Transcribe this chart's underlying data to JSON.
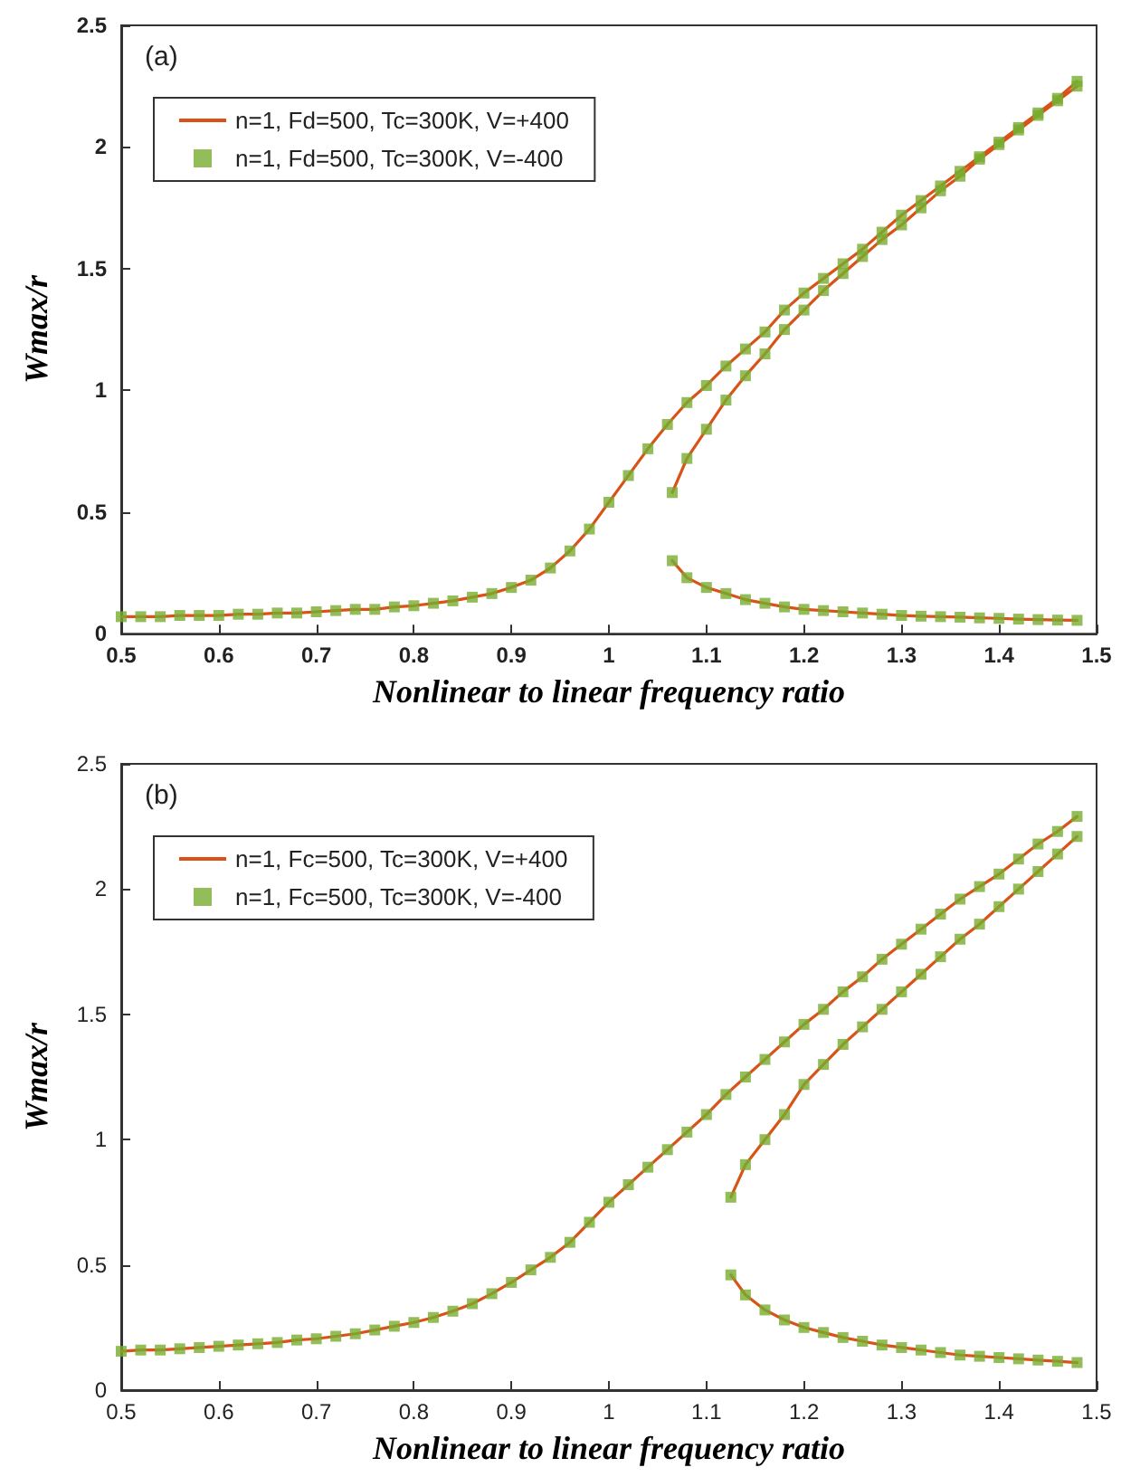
{
  "chart_data": [
    {
      "type": "line",
      "xlabel": "Nonlinear to linear frequency ratio",
      "ylabel": "Wmax/r",
      "annotations": [
        "(a)"
      ],
      "xlim": [
        0.5,
        1.5
      ],
      "xticks": [
        0.5,
        0.6,
        0.7,
        0.8,
        0.9,
        1,
        1.1,
        1.2,
        1.3,
        1.4,
        1.5
      ],
      "ylim": [
        0,
        2.5
      ],
      "yticks": [
        0,
        0.5,
        1,
        1.5,
        2,
        2.5
      ],
      "legend": "top left",
      "series": [
        {
          "name": "n=1, Fd=500, Tc=300K, V=+400",
          "marker": "none",
          "color": "#d95319",
          "x": [
            0.5,
            0.52,
            0.54,
            0.56,
            0.58,
            0.6,
            0.62,
            0.64,
            0.66,
            0.68,
            0.7,
            0.72,
            0.74,
            0.76,
            0.78,
            0.8,
            0.82,
            0.84,
            0.86,
            0.88,
            0.9,
            0.92,
            0.94,
            0.96,
            0.98,
            1.0,
            1.02,
            1.04,
            1.06,
            1.08,
            1.1,
            1.12,
            1.14,
            1.16,
            1.18,
            1.2,
            1.22,
            1.24,
            1.26,
            1.28,
            1.3,
            1.32,
            1.34,
            1.36,
            1.38,
            1.4,
            1.42,
            1.44,
            1.46,
            1.48,
            null,
            1.065,
            1.08,
            1.1,
            1.12,
            1.14,
            1.16,
            1.18,
            1.2,
            1.22,
            1.24,
            1.26,
            1.28,
            1.3,
            1.32,
            1.34,
            1.36,
            1.38,
            1.4,
            1.42,
            1.44,
            1.46,
            1.48,
            null,
            1.065,
            1.08,
            1.1,
            1.12,
            1.14,
            1.16,
            1.18,
            1.2,
            1.22,
            1.24,
            1.26,
            1.28,
            1.3,
            1.32,
            1.34,
            1.36,
            1.38,
            1.4,
            1.42,
            1.44,
            1.46,
            1.48
          ],
          "values": [
            0.07,
            0.07,
            0.07,
            0.075,
            0.075,
            0.075,
            0.08,
            0.08,
            0.085,
            0.085,
            0.09,
            0.095,
            0.1,
            0.1,
            0.11,
            0.115,
            0.125,
            0.135,
            0.15,
            0.165,
            0.19,
            0.22,
            0.27,
            0.34,
            0.43,
            0.54,
            0.65,
            0.76,
            0.86,
            0.95,
            1.02,
            1.1,
            1.17,
            1.24,
            1.33,
            1.4,
            1.46,
            1.52,
            1.58,
            1.65,
            1.72,
            1.78,
            1.84,
            1.9,
            1.96,
            2.02,
            2.08,
            2.14,
            2.2,
            2.27,
            null,
            0.58,
            0.72,
            0.84,
            0.96,
            1.06,
            1.15,
            1.25,
            1.33,
            1.41,
            1.48,
            1.55,
            1.62,
            1.68,
            1.75,
            1.82,
            1.88,
            1.95,
            2.01,
            2.07,
            2.13,
            2.19,
            2.25,
            null,
            0.3,
            0.23,
            0.19,
            0.165,
            0.14,
            0.125,
            0.11,
            0.1,
            0.095,
            0.09,
            0.085,
            0.08,
            0.075,
            0.072,
            0.07,
            0.068,
            0.065,
            0.063,
            0.06,
            0.058,
            0.056,
            0.055
          ]
        },
        {
          "name": "n=1, Fd=500, Tc=300K, V=-400",
          "type": "scatter",
          "marker": "square",
          "color": "#77ac30",
          "x": [
            0.5,
            0.52,
            0.54,
            0.56,
            0.58,
            0.6,
            0.62,
            0.64,
            0.66,
            0.68,
            0.7,
            0.72,
            0.74,
            0.76,
            0.78,
            0.8,
            0.82,
            0.84,
            0.86,
            0.88,
            0.9,
            0.92,
            0.94,
            0.96,
            0.98,
            1.0,
            1.02,
            1.04,
            1.06,
            1.08,
            1.1,
            1.12,
            1.14,
            1.16,
            1.18,
            1.2,
            1.22,
            1.24,
            1.26,
            1.28,
            1.3,
            1.32,
            1.34,
            1.36,
            1.38,
            1.4,
            1.42,
            1.44,
            1.46,
            1.48,
            1.065,
            1.08,
            1.1,
            1.12,
            1.14,
            1.16,
            1.18,
            1.2,
            1.22,
            1.24,
            1.26,
            1.28,
            1.3,
            1.32,
            1.34,
            1.36,
            1.38,
            1.4,
            1.42,
            1.44,
            1.46,
            1.48,
            1.065,
            1.08,
            1.1,
            1.12,
            1.14,
            1.16,
            1.18,
            1.2,
            1.22,
            1.24,
            1.26,
            1.28,
            1.3,
            1.32,
            1.34,
            1.36,
            1.38,
            1.4,
            1.42,
            1.44,
            1.46,
            1.48
          ],
          "values": [
            0.07,
            0.07,
            0.07,
            0.075,
            0.075,
            0.075,
            0.08,
            0.08,
            0.085,
            0.085,
            0.09,
            0.095,
            0.1,
            0.1,
            0.11,
            0.115,
            0.125,
            0.135,
            0.15,
            0.165,
            0.19,
            0.22,
            0.27,
            0.34,
            0.43,
            0.54,
            0.65,
            0.76,
            0.86,
            0.95,
            1.02,
            1.1,
            1.17,
            1.24,
            1.33,
            1.4,
            1.46,
            1.52,
            1.58,
            1.65,
            1.72,
            1.78,
            1.84,
            1.9,
            1.96,
            2.02,
            2.08,
            2.14,
            2.2,
            2.27,
            0.58,
            0.72,
            0.84,
            0.96,
            1.06,
            1.15,
            1.25,
            1.33,
            1.41,
            1.48,
            1.55,
            1.62,
            1.68,
            1.75,
            1.82,
            1.88,
            1.95,
            2.01,
            2.07,
            2.13,
            2.19,
            2.25,
            0.3,
            0.23,
            0.19,
            0.165,
            0.14,
            0.125,
            0.11,
            0.1,
            0.095,
            0.09,
            0.085,
            0.08,
            0.075,
            0.072,
            0.07,
            0.068,
            0.065,
            0.063,
            0.06,
            0.058,
            0.056,
            0.055
          ]
        }
      ]
    },
    {
      "type": "line",
      "xlabel": "Nonlinear to linear frequency ratio",
      "ylabel": "Wmax/r",
      "annotations": [
        "(b)"
      ],
      "xlim": [
        0.5,
        1.5
      ],
      "xticks": [
        0.5,
        0.6,
        0.7,
        0.8,
        0.9,
        1,
        1.1,
        1.2,
        1.3,
        1.4,
        1.5
      ],
      "ylim": [
        0,
        2.5
      ],
      "yticks": [
        0,
        0.5,
        1,
        1.5,
        2,
        2.5
      ],
      "legend": "top left",
      "series": [
        {
          "name": "n=1, Fc=500, Tc=300K, V=+400",
          "marker": "none",
          "color": "#d95319",
          "x": [
            0.5,
            0.52,
            0.54,
            0.56,
            0.58,
            0.6,
            0.62,
            0.64,
            0.66,
            0.68,
            0.7,
            0.72,
            0.74,
            0.76,
            0.78,
            0.8,
            0.82,
            0.84,
            0.86,
            0.88,
            0.9,
            0.92,
            0.94,
            0.96,
            0.98,
            1.0,
            1.02,
            1.04,
            1.06,
            1.08,
            1.1,
            1.12,
            1.14,
            1.16,
            1.18,
            1.2,
            1.22,
            1.24,
            1.26,
            1.28,
            1.3,
            1.32,
            1.34,
            1.36,
            1.38,
            1.4,
            1.42,
            1.44,
            1.46,
            1.48,
            null,
            1.125,
            1.14,
            1.16,
            1.18,
            1.2,
            1.22,
            1.24,
            1.26,
            1.28,
            1.3,
            1.32,
            1.34,
            1.36,
            1.38,
            1.4,
            1.42,
            1.44,
            1.46,
            1.48,
            null,
            1.125,
            1.14,
            1.16,
            1.18,
            1.2,
            1.22,
            1.24,
            1.26,
            1.28,
            1.3,
            1.32,
            1.34,
            1.36,
            1.38,
            1.4,
            1.42,
            1.44,
            1.46,
            1.48
          ],
          "values": [
            0.155,
            0.16,
            0.16,
            0.165,
            0.17,
            0.175,
            0.18,
            0.185,
            0.19,
            0.2,
            0.205,
            0.215,
            0.225,
            0.24,
            0.255,
            0.27,
            0.29,
            0.315,
            0.345,
            0.385,
            0.43,
            0.48,
            0.53,
            0.59,
            0.67,
            0.75,
            0.82,
            0.89,
            0.96,
            1.03,
            1.1,
            1.18,
            1.25,
            1.32,
            1.39,
            1.46,
            1.52,
            1.59,
            1.65,
            1.72,
            1.78,
            1.84,
            1.9,
            1.96,
            2.01,
            2.06,
            2.12,
            2.18,
            2.23,
            2.29,
            null,
            0.77,
            0.9,
            1.0,
            1.1,
            1.22,
            1.3,
            1.38,
            1.45,
            1.52,
            1.59,
            1.66,
            1.73,
            1.8,
            1.86,
            1.93,
            2.0,
            2.07,
            2.14,
            2.21,
            null,
            0.46,
            0.38,
            0.32,
            0.28,
            0.25,
            0.23,
            0.21,
            0.195,
            0.18,
            0.17,
            0.16,
            0.15,
            0.14,
            0.135,
            0.13,
            0.125,
            0.12,
            0.115,
            0.11
          ]
        },
        {
          "name": "n=1, Fc=500, Tc=300K, V=-400",
          "type": "scatter",
          "marker": "square",
          "color": "#77ac30",
          "x": [
            0.5,
            0.52,
            0.54,
            0.56,
            0.58,
            0.6,
            0.62,
            0.64,
            0.66,
            0.68,
            0.7,
            0.72,
            0.74,
            0.76,
            0.78,
            0.8,
            0.82,
            0.84,
            0.86,
            0.88,
            0.9,
            0.92,
            0.94,
            0.96,
            0.98,
            1.0,
            1.02,
            1.04,
            1.06,
            1.08,
            1.1,
            1.12,
            1.14,
            1.16,
            1.18,
            1.2,
            1.22,
            1.24,
            1.26,
            1.28,
            1.3,
            1.32,
            1.34,
            1.36,
            1.38,
            1.4,
            1.42,
            1.44,
            1.46,
            1.48,
            1.125,
            1.14,
            1.16,
            1.18,
            1.2,
            1.22,
            1.24,
            1.26,
            1.28,
            1.3,
            1.32,
            1.34,
            1.36,
            1.38,
            1.4,
            1.42,
            1.44,
            1.46,
            1.48,
            1.125,
            1.14,
            1.16,
            1.18,
            1.2,
            1.22,
            1.24,
            1.26,
            1.28,
            1.3,
            1.32,
            1.34,
            1.36,
            1.38,
            1.4,
            1.42,
            1.44,
            1.46,
            1.48
          ],
          "values": [
            0.155,
            0.16,
            0.16,
            0.165,
            0.17,
            0.175,
            0.18,
            0.185,
            0.19,
            0.2,
            0.205,
            0.215,
            0.225,
            0.24,
            0.255,
            0.27,
            0.29,
            0.315,
            0.345,
            0.385,
            0.43,
            0.48,
            0.53,
            0.59,
            0.67,
            0.75,
            0.82,
            0.89,
            0.96,
            1.03,
            1.1,
            1.18,
            1.25,
            1.32,
            1.39,
            1.46,
            1.52,
            1.59,
            1.65,
            1.72,
            1.78,
            1.84,
            1.9,
            1.96,
            2.01,
            2.06,
            2.12,
            2.18,
            2.23,
            2.29,
            0.77,
            0.9,
            1.0,
            1.1,
            1.22,
            1.3,
            1.38,
            1.45,
            1.52,
            1.59,
            1.66,
            1.73,
            1.8,
            1.86,
            1.93,
            2.0,
            2.07,
            2.14,
            2.21,
            0.46,
            0.38,
            0.32,
            0.28,
            0.25,
            0.23,
            0.21,
            0.195,
            0.18,
            0.17,
            0.16,
            0.15,
            0.14,
            0.135,
            0.13,
            0.125,
            0.12,
            0.115,
            0.11
          ]
        }
      ]
    }
  ]
}
